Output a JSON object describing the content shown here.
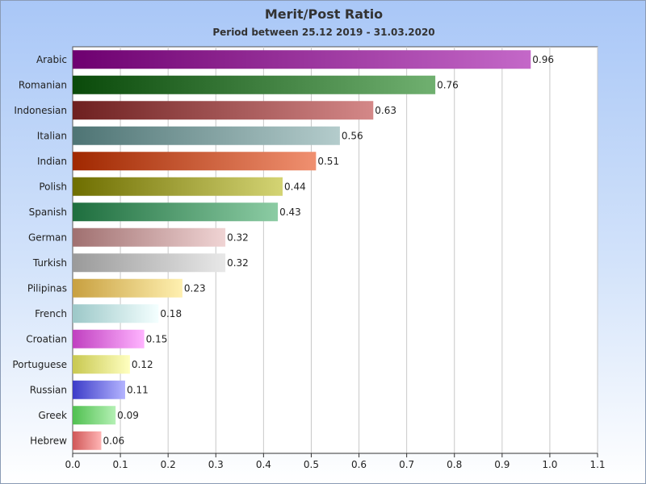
{
  "chart_data": {
    "type": "bar",
    "orientation": "horizontal",
    "title": "Merit/Post Ratio",
    "subtitle": "Period between 25.12 2019 - 31.03.2020",
    "categories": [
      "Arabic",
      "Romanian",
      "Indonesian",
      "Italian",
      "Indian",
      "Polish",
      "Spanish",
      "German",
      "Turkish",
      "Pilipinas",
      "French",
      "Croatian",
      "Portuguese",
      "Russian",
      "Greek",
      "Hebrew"
    ],
    "values": [
      0.96,
      0.76,
      0.63,
      0.56,
      0.51,
      0.44,
      0.43,
      0.32,
      0.32,
      0.23,
      0.18,
      0.15,
      0.12,
      0.11,
      0.09,
      0.06
    ],
    "value_labels": [
      "0.96",
      "0.76",
      "0.63",
      "0.56",
      "0.51",
      "0.44",
      "0.43",
      "0.32",
      "0.32",
      "0.23",
      "0.18",
      "0.15",
      "0.12",
      "0.11",
      "0.09",
      "0.06"
    ],
    "colors": [
      [
        "#6e0070",
        "#c468c8"
      ],
      [
        "#0a4a0a",
        "#70b070"
      ],
      [
        "#6e2020",
        "#d48888"
      ],
      [
        "#4e7474",
        "#b4cccc"
      ],
      [
        "#a02800",
        "#f09070"
      ],
      [
        "#6e6e00",
        "#d4d474"
      ],
      [
        "#1e6e3e",
        "#8ccca4"
      ],
      [
        "#a07070",
        "#f0d4d4"
      ],
      [
        "#9a9a9a",
        "#e8e8e8"
      ],
      [
        "#c8a040",
        "#fff0b0"
      ],
      [
        "#9cc8c8",
        "#f4ffff"
      ],
      [
        "#c040c0",
        "#ffb4ff"
      ],
      [
        "#c8c850",
        "#ffffc0"
      ],
      [
        "#3c3cc8",
        "#b4b4ff"
      ],
      [
        "#50c050",
        "#b4f0b4"
      ],
      [
        "#d05858",
        "#ffb4b4"
      ]
    ],
    "xlim": [
      0,
      1.1
    ],
    "x_ticks": [
      "0.0",
      "0.1",
      "0.2",
      "0.3",
      "0.4",
      "0.5",
      "0.6",
      "0.7",
      "0.8",
      "0.9",
      "1.0",
      "1.1"
    ],
    "x_tick_values": [
      0,
      0.1,
      0.2,
      0.3,
      0.4,
      0.5,
      0.6,
      0.7,
      0.8,
      0.9,
      1.0,
      1.1
    ],
    "xlabel": "",
    "ylabel": "",
    "grid": "vertical",
    "plot_background": "#ffffff",
    "grid_color": "#c8c8c8"
  }
}
